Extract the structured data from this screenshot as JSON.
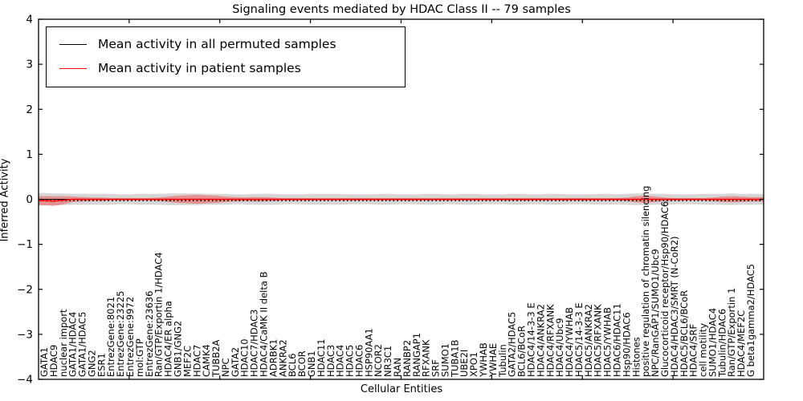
{
  "figure": {
    "background": "#ffffff",
    "axes_color": "#000000"
  },
  "legend": {
    "entries": [
      {
        "label": "Mean activity in all permuted samples",
        "color": "#000000"
      },
      {
        "label": "Mean activity in patient samples",
        "color": "#ff0000"
      }
    ]
  },
  "chart_data": {
    "type": "line",
    "title": "Signaling events mediated by HDAC Class II -- 79 samples",
    "xlabel": "Cellular Entities",
    "ylabel": "Inferred Activity",
    "ylim": [
      -4,
      4
    ],
    "yticks": [
      4,
      3,
      2,
      1,
      0,
      -1,
      -2,
      -3,
      -4
    ],
    "grid": false,
    "legend_position": "upper left",
    "categories": [
      "GATA1",
      "HDAC9",
      "nuclear import",
      "GATA1/HDAC4",
      "GATA1/HDAC5",
      "GNG2",
      "ESR1",
      "EntrezGene:8021",
      "EntrezGene:23225",
      "EntrezGene:9972",
      "mol:GTP",
      "EntrezGene:23636",
      "Ran/GTP/Exportin 1/HDAC4",
      "HDAC4/ER alpha",
      "GNB1/GNG2",
      "MEF2C",
      "HDAC7",
      "CAMK4",
      "TUBB2A",
      "NPC",
      "GATA2",
      "HDAC10",
      "HDAC7/HDAC3",
      "HDAC4/CaMK II delta B",
      "ADRBK1",
      "ANKRA2",
      "BCL6",
      "BCOR",
      "GNB1",
      "HDAC11",
      "HDAC3",
      "HDAC4",
      "HDAC5",
      "HDAC6",
      "HSP90AA1",
      "NCOR2",
      "NR3C1",
      "RAN",
      "RANBP2",
      "RANGAP1",
      "RFXANK",
      "SRF",
      "SUMO1",
      "TUBA1B",
      "UBE2I",
      "XPO1",
      "YWHAB",
      "YWHAE",
      "Tubulin",
      "GATA2/HDAC5",
      "BCL6/BCoR",
      "HDAC4/14-3-3 E",
      "HDAC4/ANKRA2",
      "HDAC4/RFXANK",
      "HDAC4/Ubc9",
      "HDAC4/YWHAB",
      "HDAC5/14-3-3 E",
      "HDAC5/ANKRA2",
      "HDAC5/RFXANK",
      "HDAC5/YWHAB",
      "HDAC6/HDAC11",
      "Hsp90/HDAC6",
      "Histones",
      "positive regulation of chromatin silencing",
      "NPC/RanGAP1/SUMO1/Ubc9",
      "Glucocorticoid receptor/Hsp90/HDAC6",
      "HDAC4/HDAC3/SMRT (N-CoR2)",
      "HDAC5/BCL6/BCoR",
      "HDAC4/SRF",
      "cell motility",
      "SUMO1/HDAC4",
      "Tubulin/HDAC6",
      "Ran/GTP/Exportin 1",
      "HDAC4/MEF2C",
      "G beta1gamma2/HDAC5"
    ],
    "series": [
      {
        "name": "Mean activity in all permuted samples",
        "color": "#000000",
        "band_color": "rgba(120,120,120,0.30)",
        "values": [
          0,
          0,
          0,
          0,
          0,
          0,
          0,
          0,
          0,
          0,
          0,
          0,
          0,
          0,
          0,
          0,
          0,
          0,
          0,
          0,
          0,
          0,
          0,
          0,
          0,
          0,
          0,
          0,
          0,
          0,
          0,
          0,
          0,
          0,
          0,
          0,
          0,
          0,
          0,
          0,
          0,
          0,
          0,
          0,
          0,
          0,
          0,
          0,
          0,
          0,
          0,
          0,
          0,
          0,
          0,
          0,
          0,
          0,
          0,
          0,
          0,
          0,
          0,
          0,
          0,
          0,
          0,
          0,
          0,
          0,
          0,
          0,
          0,
          0,
          0
        ],
        "band_halfwidth": [
          0.14,
          0.13,
          0.13,
          0.12,
          0.12,
          0.12,
          0.12,
          0.12,
          0.11,
          0.11,
          0.12,
          0.12,
          0.12,
          0.13,
          0.13,
          0.13,
          0.13,
          0.12,
          0.12,
          0.12,
          0.11,
          0.11,
          0.12,
          0.12,
          0.12,
          0.11,
          0.11,
          0.11,
          0.12,
          0.12,
          0.12,
          0.12,
          0.11,
          0.11,
          0.11,
          0.12,
          0.12,
          0.11,
          0.11,
          0.11,
          0.12,
          0.12,
          0.11,
          0.11,
          0.12,
          0.12,
          0.11,
          0.11,
          0.11,
          0.12,
          0.12,
          0.11,
          0.11,
          0.12,
          0.12,
          0.11,
          0.11,
          0.11,
          0.12,
          0.12,
          0.11,
          0.12,
          0.13,
          0.13,
          0.12,
          0.12,
          0.11,
          0.11,
          0.11,
          0.12,
          0.12,
          0.12,
          0.13,
          0.12,
          0.12
        ]
      },
      {
        "name": "Mean activity in patient samples",
        "color": "#ff0000",
        "band_color": "rgba(255,0,0,0.32)",
        "values": [
          -0.03,
          -0.04,
          -0.02,
          0,
          0,
          0,
          0,
          0,
          0,
          0,
          0,
          0,
          0,
          0,
          0,
          0,
          0,
          0,
          0,
          0,
          0,
          0,
          0,
          0,
          0,
          0,
          0,
          0,
          0,
          0,
          0,
          0,
          0,
          0,
          0,
          0,
          0,
          0,
          0,
          0,
          0,
          0,
          0,
          0,
          0,
          0,
          0,
          0,
          0,
          0,
          0,
          0,
          0,
          0,
          0,
          0,
          0,
          0,
          0,
          0,
          0,
          0,
          0,
          0,
          0,
          0,
          0,
          0,
          0,
          0,
          0,
          0,
          0,
          0,
          0
        ],
        "band_halfwidth": [
          0.1,
          0.11,
          0.09,
          0.06,
          0.05,
          0.04,
          0.04,
          0.03,
          0.03,
          0.03,
          0.03,
          0.03,
          0.04,
          0.06,
          0.08,
          0.09,
          0.1,
          0.09,
          0.08,
          0.06,
          0.05,
          0.04,
          0.05,
          0.05,
          0.04,
          0.03,
          0.03,
          0.03,
          0.03,
          0.03,
          0.03,
          0.03,
          0.03,
          0.03,
          0.03,
          0.03,
          0.03,
          0.03,
          0.03,
          0.03,
          0.03,
          0.03,
          0.03,
          0.03,
          0.03,
          0.03,
          0.03,
          0.03,
          0.03,
          0.03,
          0.03,
          0.03,
          0.03,
          0.03,
          0.03,
          0.03,
          0.03,
          0.03,
          0.03,
          0.03,
          0.03,
          0.04,
          0.07,
          0.08,
          0.06,
          0.04,
          0.03,
          0.03,
          0.03,
          0.03,
          0.04,
          0.06,
          0.07,
          0.06,
          0.05
        ]
      }
    ]
  }
}
